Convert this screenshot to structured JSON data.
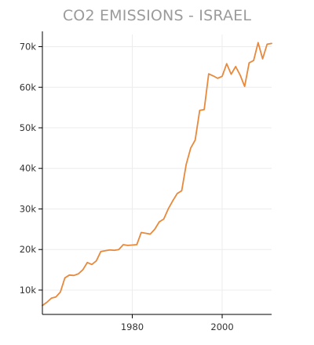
{
  "chart_data": {
    "type": "line",
    "title": "CO2 EMISSIONS - ISRAEL",
    "xlabel": "",
    "ylabel": "",
    "xlim": [
      1960,
      2011
    ],
    "ylim": [
      4000,
      73000
    ],
    "x_ticks": [
      1980,
      2000
    ],
    "x_tick_labels": [
      "1980",
      "2000"
    ],
    "y_ticks": [
      10000,
      20000,
      30000,
      40000,
      50000,
      60000,
      70000
    ],
    "y_tick_labels": [
      "10k",
      "20k",
      "30k",
      "40k",
      "50k",
      "60k",
      "70k"
    ],
    "grid": true,
    "series": [
      {
        "color": "#e8893c",
        "x": [
          1960,
          1961,
          1962,
          1963,
          1964,
          1965,
          1966,
          1967,
          1968,
          1969,
          1970,
          1971,
          1972,
          1973,
          1974,
          1975,
          1976,
          1977,
          1978,
          1979,
          1980,
          1981,
          1982,
          1983,
          1984,
          1985,
          1986,
          1987,
          1988,
          1989,
          1990,
          1991,
          1992,
          1993,
          1994,
          1995,
          1996,
          1997,
          1998,
          1999,
          2000,
          2001,
          2002,
          2003,
          2004,
          2005,
          2006,
          2007,
          2008,
          2009,
          2010,
          2011
        ],
        "values": [
          6200,
          7000,
          8000,
          8300,
          9500,
          13000,
          13700,
          13600,
          14000,
          15000,
          16800,
          16300,
          17200,
          19500,
          19700,
          19900,
          19800,
          20000,
          21200,
          21000,
          21100,
          21200,
          24200,
          24000,
          23800,
          25000,
          26800,
          27500,
          30000,
          32000,
          33800,
          34500,
          41000,
          45000,
          47000,
          54300,
          54500,
          63300,
          62800,
          62200,
          62700,
          65800,
          63200,
          65100,
          63000,
          60200,
          66000,
          66600,
          71000,
          67000,
          70600,
          70800
        ]
      }
    ]
  }
}
